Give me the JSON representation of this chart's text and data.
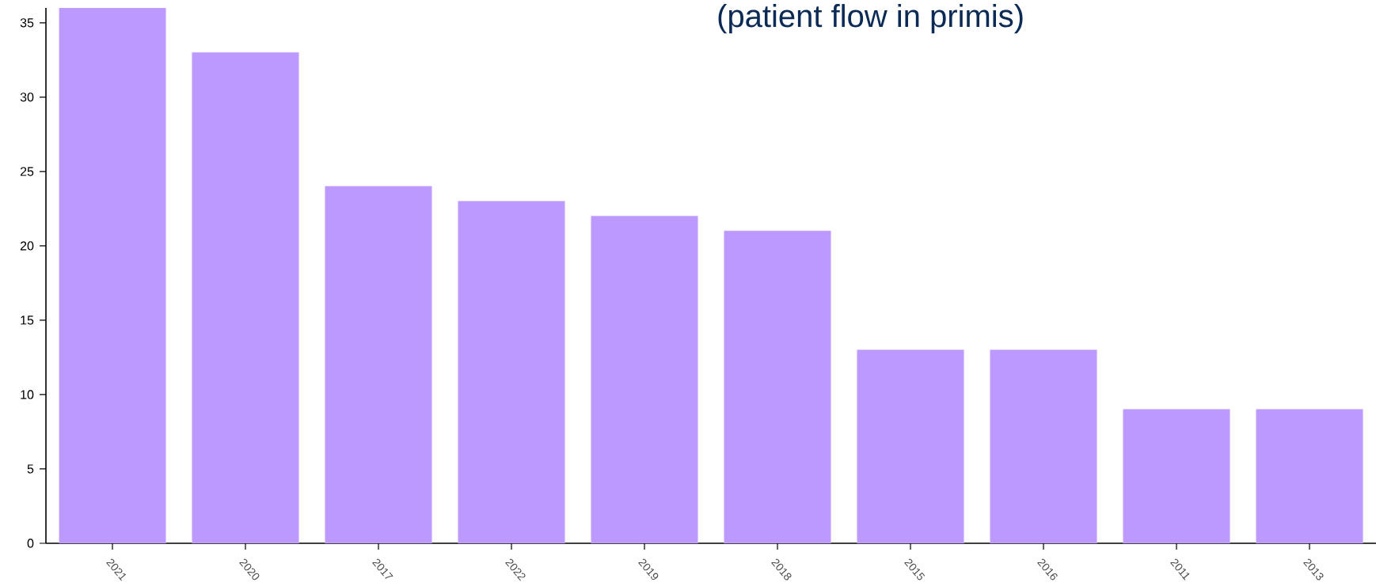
{
  "chart_data": {
    "type": "bar",
    "title": "(patient flow in primis)",
    "categories": [
      "2021",
      "2020",
      "2017",
      "2022",
      "2019",
      "2018",
      "2015",
      "2016",
      "2011",
      "2013"
    ],
    "values": [
      36,
      33,
      24,
      23,
      22,
      21,
      13,
      13,
      9,
      9
    ],
    "color": "#bb99ff",
    "ylim": [
      0,
      36
    ],
    "yticks": [
      0,
      5,
      10,
      15,
      20,
      25,
      30,
      35
    ],
    "grid": false
  }
}
